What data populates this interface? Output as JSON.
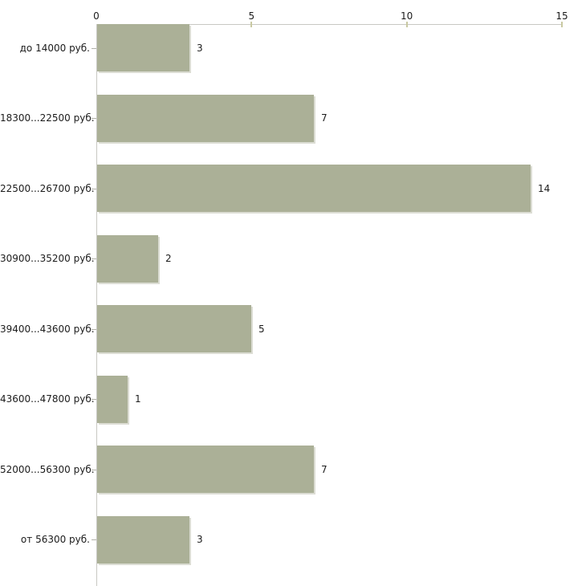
{
  "page": {
    "background": "#ffffff",
    "text_color": "#1c1c1c"
  },
  "chart_data": {
    "type": "bar",
    "orientation": "horizontal",
    "title": "",
    "xlabel": "",
    "ylabel": "",
    "categories": [
      "до 14000 руб.",
      "18300...22500 руб.",
      "22500...26700 руб.",
      "30900...35200 руб.",
      "39400...43600 руб.",
      "43600...47800 руб.",
      "52000...56300 руб.",
      "от 56300 руб."
    ],
    "values": [
      3,
      7,
      14,
      2,
      5,
      1,
      7,
      3
    ],
    "value_labels": [
      "3",
      "7",
      "14",
      "2",
      "5",
      "1",
      "7",
      "3"
    ],
    "xlim": [
      0,
      15
    ],
    "x_ticks": [
      0,
      5,
      10,
      15
    ],
    "x_tick_labels": [
      "0",
      "5",
      "10",
      "15"
    ],
    "axis_position": "top",
    "grid": false,
    "legend": false,
    "colors": {
      "bar_fill": "#abb097",
      "bar_shadow": "#dcddd4",
      "axis_line": "#c8c8c3",
      "tick_mark": "#c9c9a2",
      "category_dash": "#b0b0a8",
      "label_text": "#1c1c1c"
    }
  }
}
